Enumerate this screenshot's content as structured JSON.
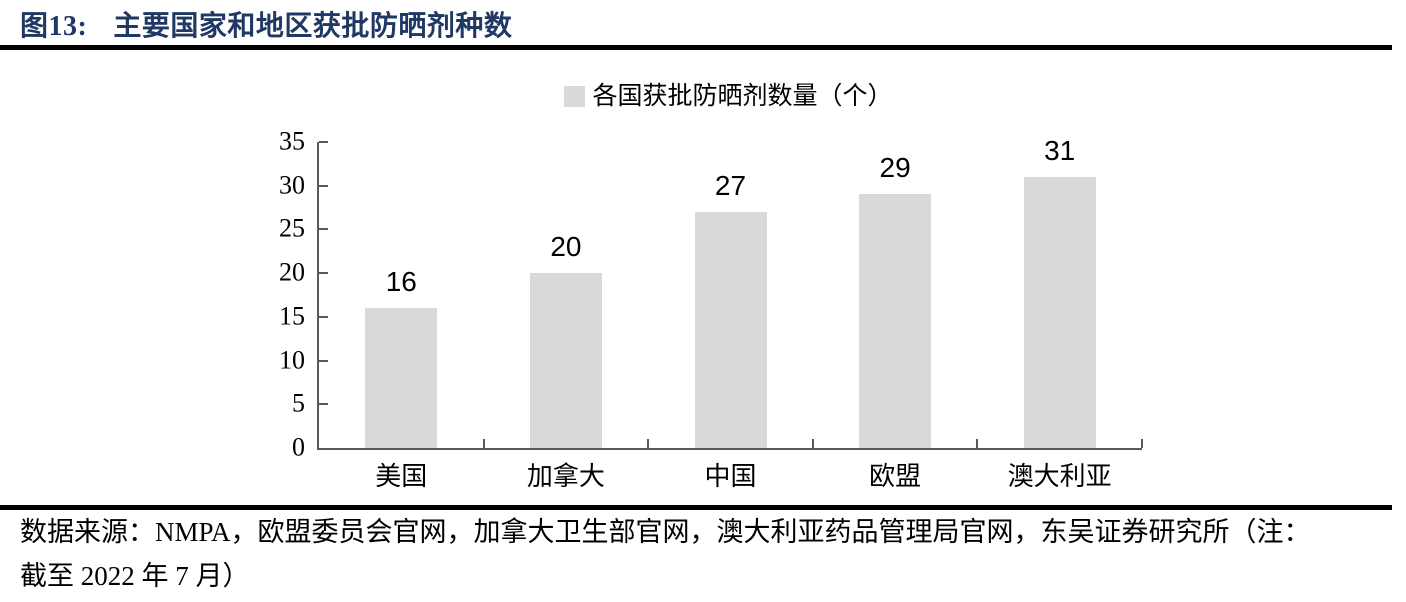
{
  "figure": {
    "number_label": "图13:",
    "title": "主要国家和地区获批防晒剂种数"
  },
  "chart_data": {
    "type": "bar",
    "title": "主要国家和地区获批防晒剂种数",
    "legend": "各国获批防晒剂数量（个）",
    "legend_position": "top",
    "categories": [
      "美国",
      "加拿大",
      "中国",
      "欧盟",
      "澳大利亚"
    ],
    "values": [
      16,
      20,
      27,
      29,
      31
    ],
    "xlabel": "",
    "ylabel": "",
    "ylim": [
      0,
      35
    ],
    "yticks": [
      0,
      5,
      10,
      15,
      20,
      25,
      30,
      35
    ],
    "grid": "off",
    "bar_color": "#d9d9d9",
    "axis_color": "#595959"
  },
  "footer": {
    "line1": "数据来源：NMPA，欧盟委员会官网，加拿大卫生部官网，澳大利亚药品管理局官网，东吴证券研究所（注：",
    "line2": "截至 2022 年 7 月）"
  },
  "colors": {
    "title": "#1f3864",
    "rule": "#000000"
  }
}
